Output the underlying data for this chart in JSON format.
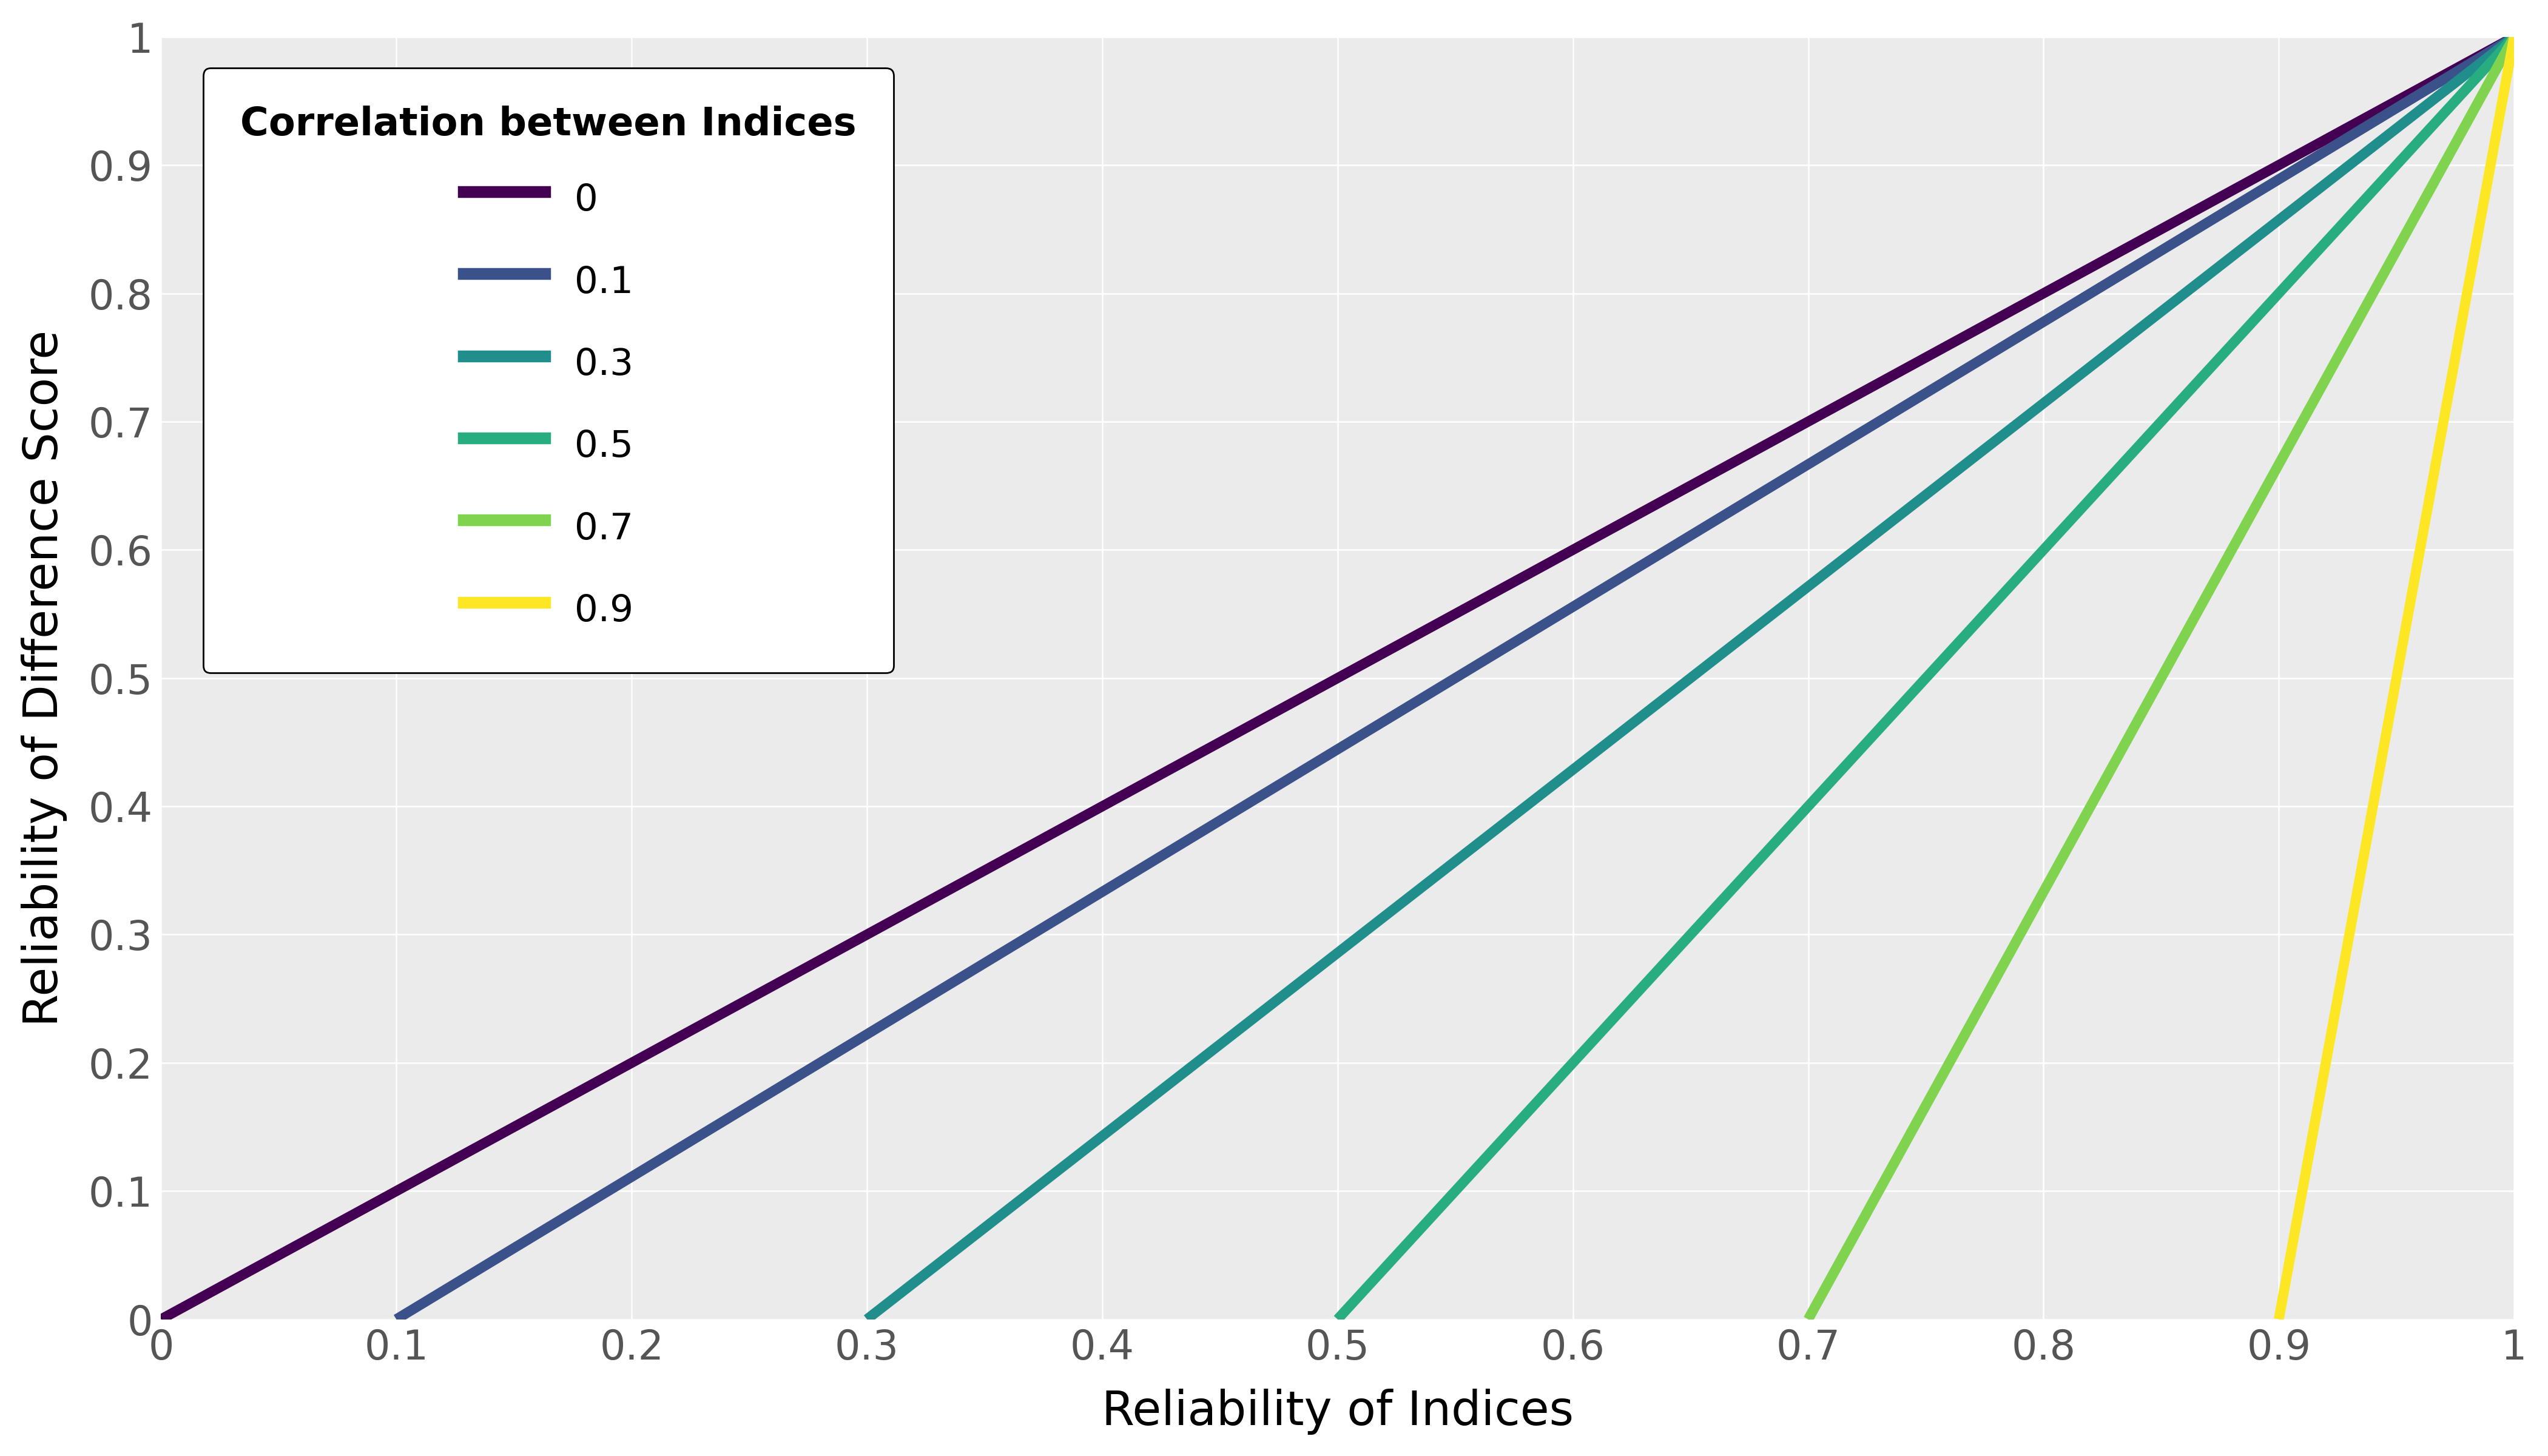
{
  "title": "",
  "xlabel": "Reliability of Indices",
  "ylabel": "Reliability of Difference Score",
  "correlations": [
    0,
    0.1,
    0.3,
    0.5,
    0.7,
    0.9
  ],
  "colors": [
    "#440154",
    "#3B518A",
    "#208F8C",
    "#27AD80",
    "#7FD34E",
    "#FDE725"
  ],
  "legend_title": "Correlation between Indices",
  "xlim": [
    0,
    1
  ],
  "ylim": [
    0,
    1
  ],
  "xticks": [
    0,
    0.1,
    0.2,
    0.3,
    0.4,
    0.5,
    0.6,
    0.7,
    0.8,
    0.9,
    1.0
  ],
  "yticks": [
    0,
    0.1,
    0.2,
    0.3,
    0.4,
    0.5,
    0.6,
    0.7,
    0.8,
    0.9,
    1.0
  ],
  "panel_background": "#EBEBEB",
  "fig_background": "#FFFFFF",
  "grid_color": "#FFFFFF",
  "tick_color": "#555555",
  "linewidth": 12
}
